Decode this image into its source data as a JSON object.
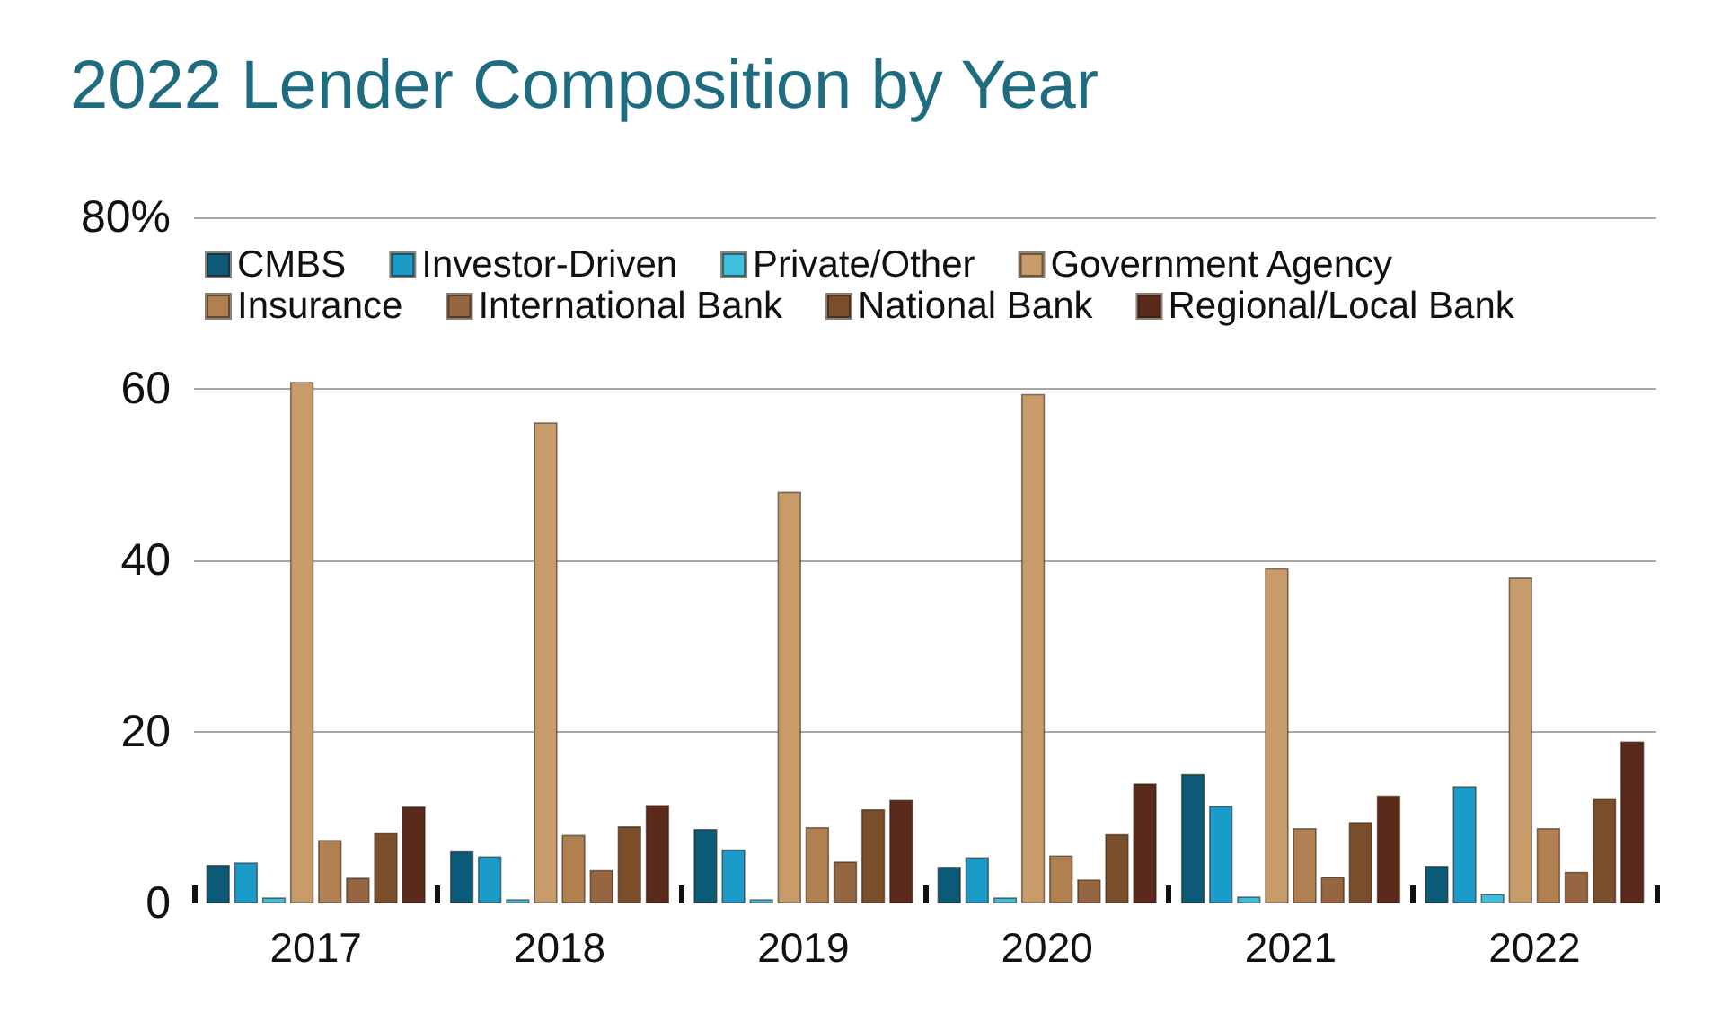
{
  "chart_data": {
    "type": "bar",
    "title": "2022 Lender Composition by Year",
    "categories": [
      "2017",
      "2018",
      "2019",
      "2020",
      "2021",
      "2022"
    ],
    "series": [
      {
        "name": "CMBS",
        "color": "#0b5a78",
        "values": [
          4.5,
          6.1,
          8.7,
          4.3,
          15.1,
          4.4
        ]
      },
      {
        "name": "Investor-Driven",
        "color": "#1a9bc8",
        "values": [
          4.8,
          5.5,
          6.3,
          5.4,
          11.4,
          13.7
        ]
      },
      {
        "name": "Private/Other",
        "color": "#3ec0dc",
        "values": [
          0.7,
          0.5,
          0.5,
          0.7,
          0.8,
          1.1
        ]
      },
      {
        "name": "Government Agency",
        "color": "#c89b6a",
        "values": [
          60.8,
          56.1,
          48.0,
          59.4,
          39.1,
          38.0
        ]
      },
      {
        "name": "Insurance",
        "color": "#b08050",
        "values": [
          7.4,
          8.0,
          8.9,
          5.6,
          8.8,
          8.8
        ]
      },
      {
        "name": "International Bank",
        "color": "#966541",
        "values": [
          3.0,
          3.9,
          4.9,
          2.8,
          3.1,
          3.7
        ]
      },
      {
        "name": "National Bank",
        "color": "#7a4e2a",
        "values": [
          8.3,
          9.0,
          11.0,
          8.1,
          9.5,
          12.2
        ]
      },
      {
        "name": "Regional/Local Bank",
        "color": "#5c2a1a",
        "values": [
          11.3,
          11.5,
          12.1,
          14.0,
          12.6,
          18.9
        ]
      }
    ],
    "ylim": [
      0,
      80
    ],
    "yticks": [
      0,
      20,
      40,
      60,
      {
        "value": 80,
        "label": "80%"
      }
    ],
    "grid": "y",
    "legend": "top"
  }
}
